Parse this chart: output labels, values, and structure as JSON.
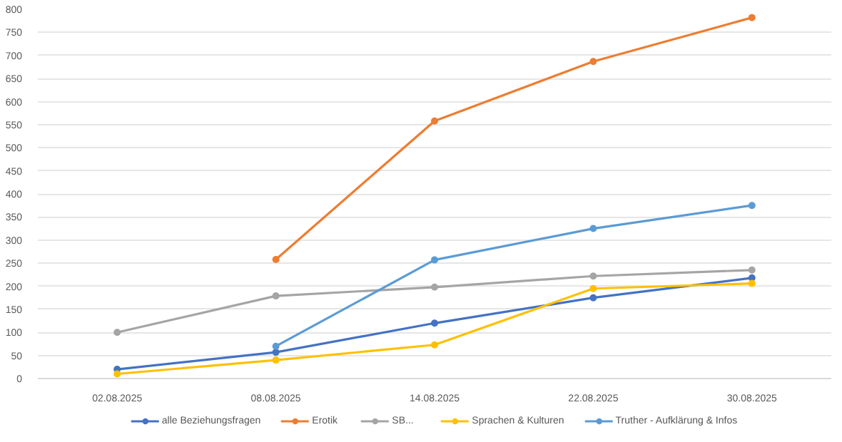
{
  "chart_data": {
    "type": "line",
    "categories": [
      "02.08.2025",
      "08.08.2025",
      "14.08.2025",
      "22.08.2025",
      "30.08.2025"
    ],
    "ylim": [
      0,
      800
    ],
    "yticks": [
      0,
      50,
      100,
      150,
      200,
      250,
      300,
      350,
      400,
      450,
      500,
      550,
      600,
      650,
      700,
      750,
      800
    ],
    "grid": "y",
    "legend": "bottom",
    "marker": "circle",
    "line_style": "solid",
    "series": [
      {
        "name": "alle Beziehungsfragen",
        "color": "#4472c4",
        "values": [
          20,
          57,
          120,
          175,
          218
        ]
      },
      {
        "name": "Erotik",
        "color": "#ed7d31",
        "values": [
          null,
          258,
          558,
          687,
          782
        ]
      },
      {
        "name": "SB...",
        "color": "#a5a5a5",
        "values": [
          100,
          179,
          198,
          222,
          235
        ]
      },
      {
        "name": "Sprachen & Kulturen",
        "color": "#ffc000",
        "values": [
          10,
          40,
          73,
          195,
          206
        ]
      },
      {
        "name": "Truther - Aufklärung & Infos",
        "color": "#5b9bd5",
        "values": [
          null,
          70,
          257,
          325,
          375
        ]
      }
    ]
  }
}
